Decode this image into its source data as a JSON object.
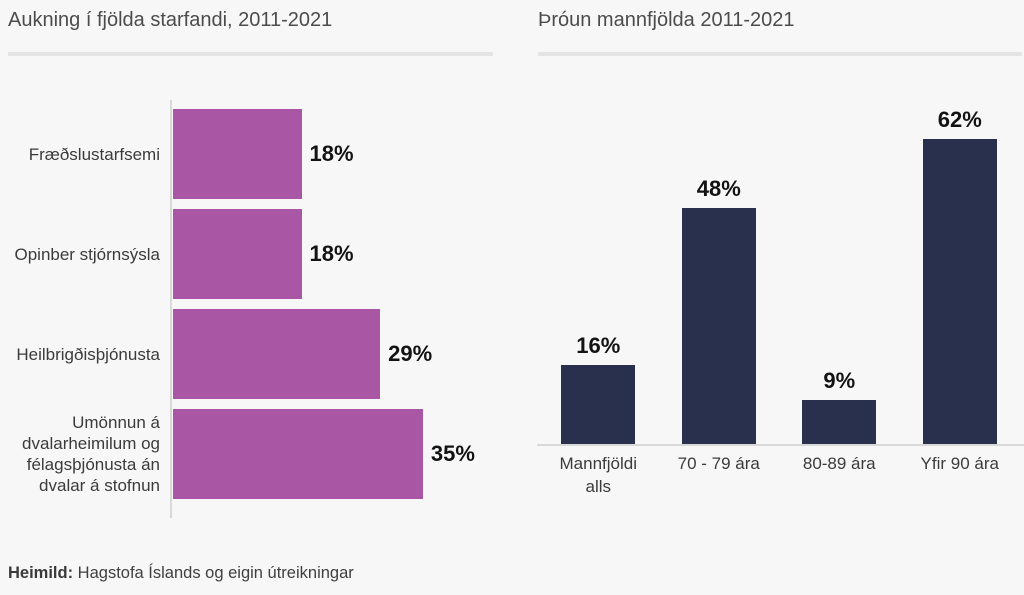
{
  "chart_data": [
    {
      "type": "bar",
      "orientation": "horizontal",
      "title": "Aukning í fjölda starfandi, 2011-2021",
      "categories": [
        "Fræðslustarfsemi",
        "Opinber stjórnsýsla",
        "Heilbrigðisþjónusta",
        "Umönnun á dvalarheimilum og félagsþjónusta án dvalar á stofnun"
      ],
      "values": [
        18,
        18,
        29,
        35
      ],
      "value_labels": [
        "18%",
        "18%",
        "29%",
        "35%"
      ],
      "unit": "%",
      "xlim": [
        0,
        35
      ],
      "bar_color": "#a956a5",
      "grid": false,
      "legend": false
    },
    {
      "type": "bar",
      "orientation": "vertical",
      "title": "Þróun mannfjölda 2011-2021",
      "categories": [
        "Mannfjöldi alls",
        "70 - 79 ára",
        "80-89 ára",
        "Yfir 90 ára"
      ],
      "values": [
        16,
        48,
        9,
        62
      ],
      "value_labels": [
        "16%",
        "48%",
        "9%",
        "62%"
      ],
      "unit": "%",
      "ylim": [
        0,
        70
      ],
      "bar_color": "#28304e",
      "grid": false,
      "legend": false
    }
  ],
  "footer": {
    "source_label": "Heimild:",
    "source_text": " Hagstofa Íslands og eigin útreikningar"
  },
  "style": {
    "background": "#f7f7f7",
    "axis_color": "#d8d8d8",
    "divider_color": "#e4e4e4",
    "title_color": "#4c4c4c"
  }
}
